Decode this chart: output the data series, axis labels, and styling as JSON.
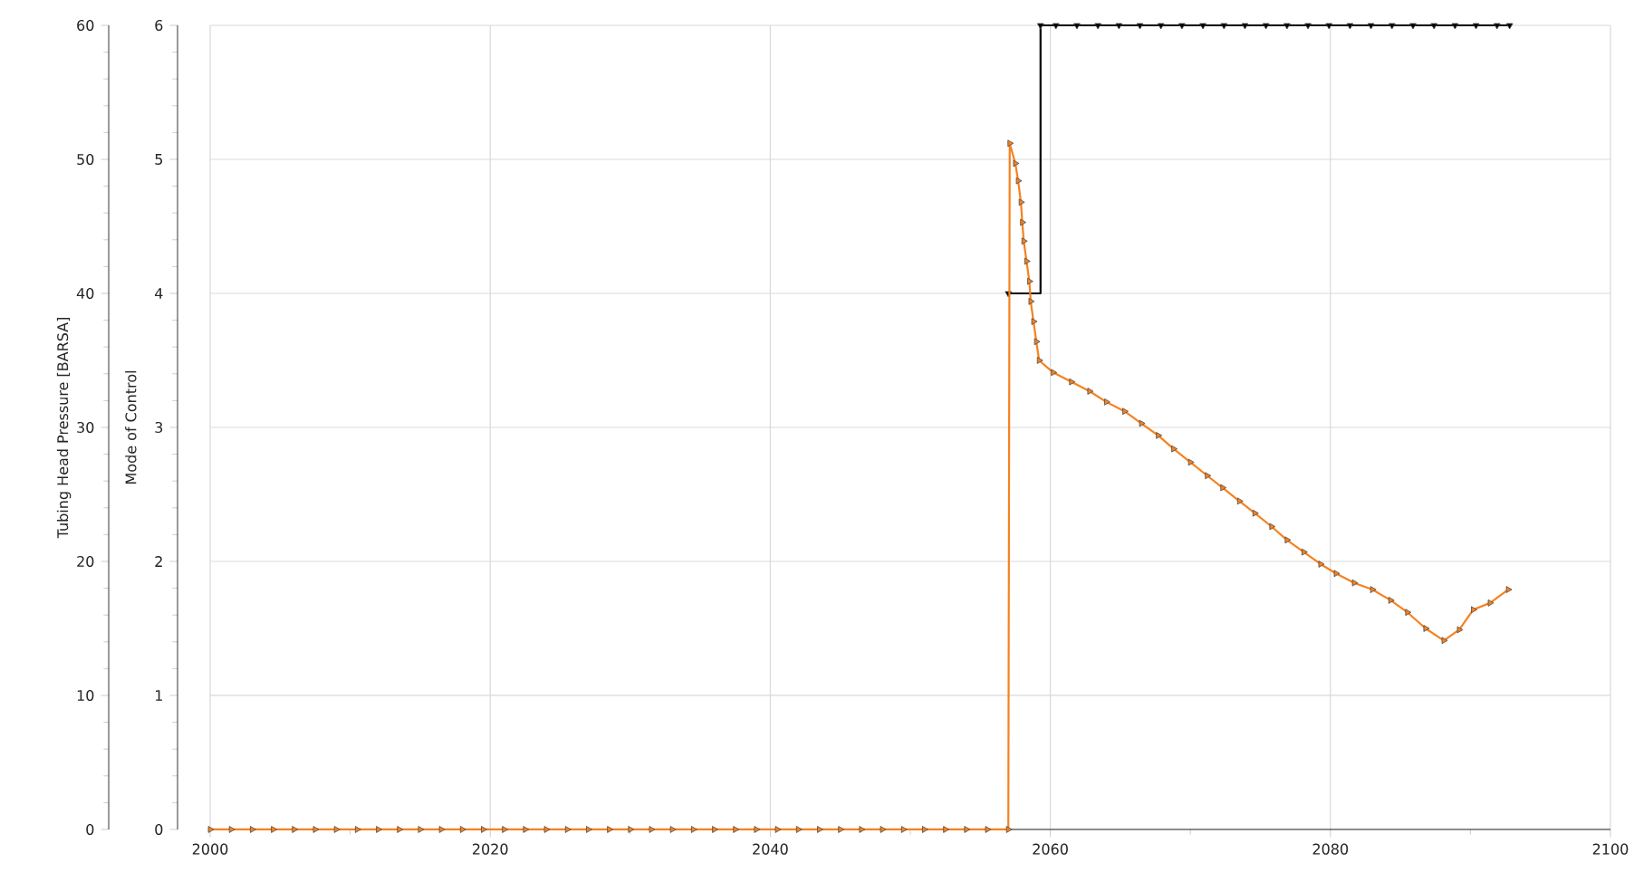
{
  "chart_data": {
    "type": "line",
    "ylabel": "Tubing Head Pressure [BARSA]",
    "y2label": "Mode of Control",
    "xlim": [
      2000,
      2100
    ],
    "xticks": [
      2000,
      2020,
      2040,
      2060,
      2080,
      2100
    ],
    "ylim": [
      0,
      60
    ],
    "yticks": [
      0,
      10,
      20,
      30,
      40,
      50,
      60
    ],
    "y2lim": [
      0,
      6
    ],
    "y2ticks": [
      0,
      1,
      2,
      3,
      4,
      5,
      6
    ],
    "grid": true,
    "series": [
      {
        "color": "#f5821f",
        "marker": "triangle",
        "x": [
          2000,
          2001.5,
          2003,
          2004.5,
          2006,
          2007.5,
          2009,
          2010.5,
          2012,
          2013.5,
          2015,
          2016.5,
          2018,
          2019.5,
          2021,
          2022.5,
          2024,
          2025.5,
          2027,
          2028.5,
          2030,
          2031.5,
          2033,
          2034.5,
          2036,
          2037.5,
          2039,
          2040.5,
          2042,
          2043.5,
          2045,
          2046.5,
          2048,
          2049.5,
          2051,
          2052.5,
          2054,
          2055.5,
          2057,
          2057.1,
          2057.5,
          2057.7,
          2057.9,
          2058.0,
          2058.1,
          2058.3,
          2058.5,
          2058.6,
          2058.8,
          2059.0,
          2059.2,
          2060.2,
          2061.5,
          2062.8,
          2064.0,
          2065.3,
          2066.5,
          2067.7,
          2068.8,
          2070.0,
          2071.2,
          2072.3,
          2073.5,
          2074.6,
          2075.8,
          2076.9,
          2078.1,
          2079.3,
          2080.4,
          2081.7,
          2083.0,
          2084.3,
          2085.5,
          2086.8,
          2088.1,
          2089.2,
          2090.2,
          2091.4,
          2092.7
        ],
        "values": [
          0,
          0,
          0,
          0,
          0,
          0,
          0,
          0,
          0,
          0,
          0,
          0,
          0,
          0,
          0,
          0,
          0,
          0,
          0,
          0,
          0,
          0,
          0,
          0,
          0,
          0,
          0,
          0,
          0,
          0,
          0,
          0,
          0,
          0,
          0,
          0,
          0,
          0,
          0,
          51.2,
          49.7,
          48.4,
          46.8,
          45.3,
          43.9,
          42.4,
          40.9,
          39.4,
          37.9,
          36.4,
          35.0,
          34.1,
          33.4,
          32.7,
          31.9,
          31.2,
          30.3,
          29.4,
          28.4,
          27.4,
          26.4,
          25.5,
          24.5,
          23.6,
          22.6,
          21.6,
          20.7,
          19.8,
          19.1,
          18.4,
          17.9,
          17.1,
          16.2,
          15.0,
          14.1,
          14.9,
          16.4,
          16.9,
          17.9
        ]
      },
      {
        "type": "step",
        "axis": "y2",
        "color": "#000000",
        "marker": "triangle",
        "x": [
          2057,
          2059.3,
          2060.4,
          2061.9,
          2063.4,
          2064.9,
          2066.4,
          2067.9,
          2069.4,
          2070.9,
          2072.4,
          2073.9,
          2075.4,
          2076.9,
          2078.4,
          2079.9,
          2081.4,
          2082.9,
          2084.4,
          2085.9,
          2087.4,
          2088.9,
          2090.4,
          2091.9,
          2092.8
        ],
        "values": [
          4,
          6,
          6,
          6,
          6,
          6,
          6,
          6,
          6,
          6,
          6,
          6,
          6,
          6,
          6,
          6,
          6,
          6,
          6,
          6,
          6,
          6,
          6,
          6,
          6
        ]
      }
    ]
  }
}
